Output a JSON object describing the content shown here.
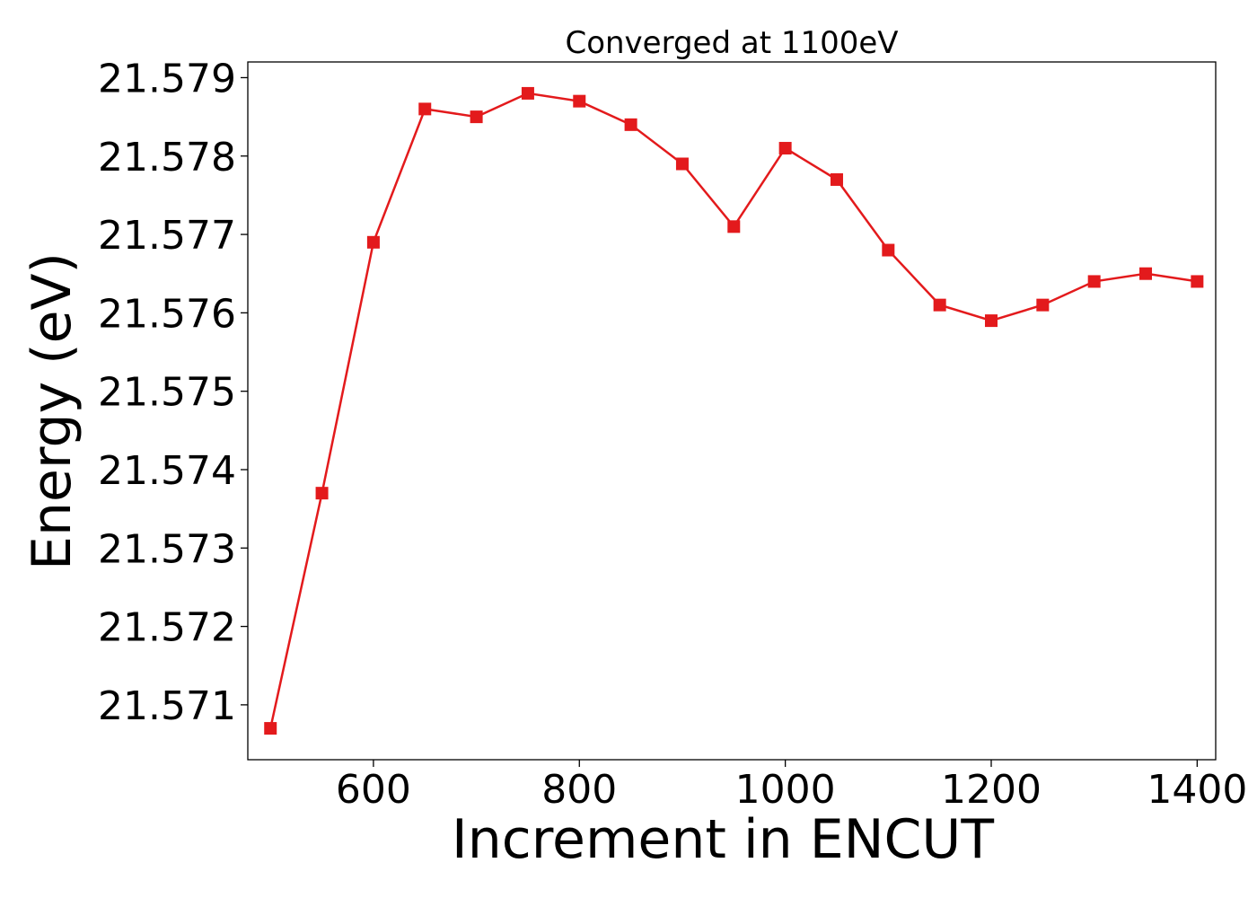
{
  "chart_data": {
    "type": "line",
    "title": "Converged at 1100eV",
    "xlabel": "Increment in ENCUT",
    "ylabel": "Energy (eV)",
    "xlim": [
      478,
      1418
    ],
    "ylim": [
      21.5703,
      21.5792
    ],
    "x_ticks": [
      600,
      800,
      1000,
      1200,
      1400
    ],
    "x_tick_labels": [
      "600",
      "800",
      "1000",
      "1200",
      "1400"
    ],
    "y_ticks": [
      21.571,
      21.572,
      21.573,
      21.574,
      21.575,
      21.576,
      21.577,
      21.578,
      21.579
    ],
    "y_tick_labels": [
      "21.571",
      "21.572",
      "21.573",
      "21.574",
      "21.575",
      "21.576",
      "21.577",
      "21.578",
      "21.579"
    ],
    "grid": false,
    "series": [
      {
        "color": "#e31a1c",
        "marker": "square",
        "x": [
          500,
          550,
          600,
          650,
          700,
          750,
          800,
          850,
          900,
          950,
          1000,
          1050,
          1100,
          1150,
          1200,
          1250,
          1300,
          1350,
          1400
        ],
        "y": [
          21.5707,
          21.5737,
          21.5769,
          21.5786,
          21.5785,
          21.5788,
          21.5787,
          21.5784,
          21.5779,
          21.5771,
          21.5781,
          21.5777,
          21.5768,
          21.5761,
          21.5759,
          21.5761,
          21.5764,
          21.5765,
          21.5764
        ]
      }
    ]
  }
}
